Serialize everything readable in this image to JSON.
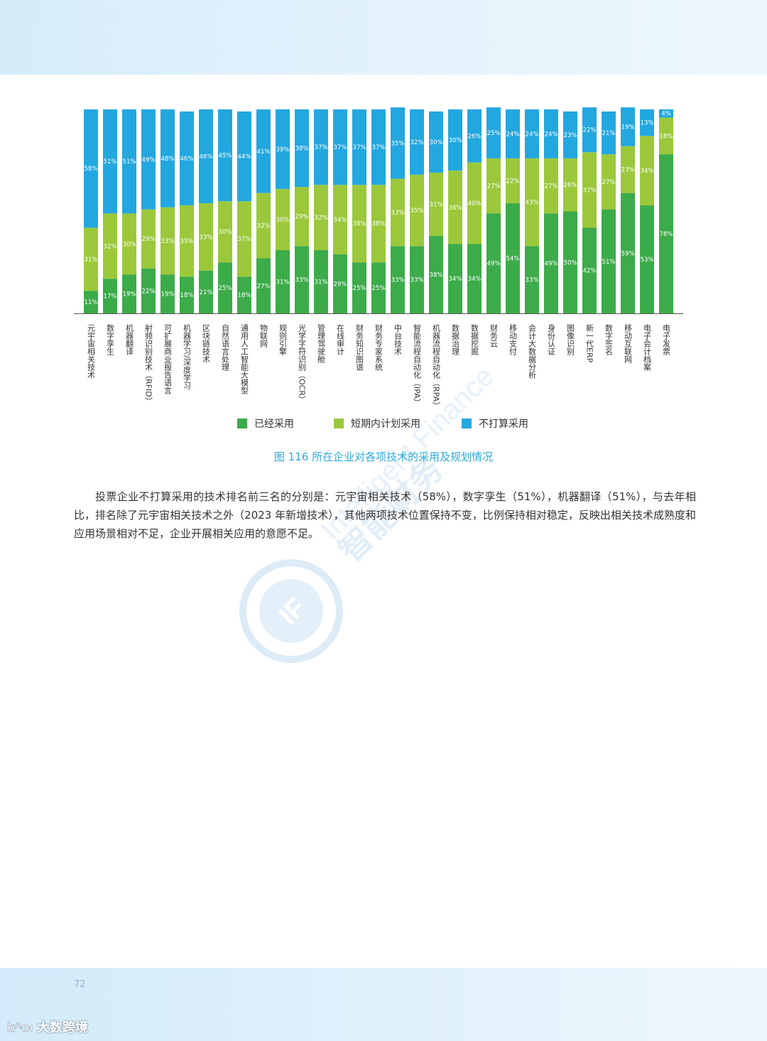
{
  "chart_data": {
    "type": "bar",
    "stacked": true,
    "stack_order": [
      "已经采用",
      "短期内计划采用",
      "不打算采用"
    ],
    "categories": [
      "元宇宙相关技术",
      "数字孪生",
      "机器翻译",
      "射频识别技术（RFID）",
      "可扩展商业报告语言",
      "机器学习/深度学习",
      "区块链技术",
      "自然语言处理",
      "通用人工智能大模型",
      "物联网",
      "规则引擎",
      "光学字符识别（OCR）",
      "管理驾驶舱",
      "在线审计",
      "财务知识图谱",
      "财务专家系统",
      "中台技术",
      "智能流程自动化（IPA）",
      "机器流程自动化（RPA）",
      "数据治理",
      "数据挖掘",
      "财务云",
      "移动支付",
      "会计大数据分析",
      "身份认证",
      "图像识别",
      "新一代ERP",
      "数字签名",
      "移动互联网",
      "电子会计档案",
      "电子发票"
    ],
    "series": [
      {
        "name": "已经采用",
        "color": "#3cab4a",
        "values": [
          11,
          17,
          19,
          22,
          19,
          18,
          21,
          25,
          18,
          27,
          31,
          33,
          31,
          29,
          25,
          25,
          33,
          33,
          38,
          34,
          34,
          49,
          54,
          33,
          49,
          50,
          42,
          51,
          59,
          53,
          78
        ]
      },
      {
        "name": "短期内计划采用",
        "color": "#9bc83b",
        "values": [
          31,
          32,
          30,
          29,
          33,
          35,
          33,
          30,
          37,
          32,
          30,
          29,
          32,
          34,
          38,
          38,
          33,
          35,
          31,
          36,
          40,
          27,
          22,
          43,
          27,
          26,
          37,
          27,
          23,
          34,
          18
        ]
      },
      {
        "name": "不打算采用",
        "color": "#23a7df",
        "values": [
          58,
          51,
          51,
          49,
          48,
          46,
          46,
          45,
          44,
          41,
          39,
          38,
          37,
          37,
          37,
          37,
          35,
          32,
          30,
          30,
          26,
          25,
          24,
          24,
          24,
          23,
          22,
          21,
          19,
          13,
          4
        ]
      }
    ],
    "value_suffix": "%",
    "ylim": [
      0,
      100
    ],
    "legend_position": "bottom",
    "grid": false
  },
  "caption": "图 116  所在企业对各项技术的采用及规划情况",
  "paragraph": "投票企业不打算采用的技术排名前三名的分别是：元宇宙相关技术（58%），数字孪生（51%），机器翻译（51%），与去年相比，排名除了元宇宙相关技术之外（2023 年新增技术），其他两项技术位置保持不变，比例保持相对稳定，反映出相关技术成熟度和应用场景相对不足，企业开展相关应用的意愿不足。",
  "page_number": "72",
  "watermark": {
    "text_cn": "智能财务",
    "text_en": "Intelligent Finance",
    "logo": "IF"
  },
  "brand": {
    "name": "大数跨境",
    "logo": "k^oo"
  },
  "colors": {
    "accent": "#2fa9dc",
    "adopted": "#3cab4a",
    "planned": "#9bc83b",
    "not_planned": "#23a7df"
  }
}
